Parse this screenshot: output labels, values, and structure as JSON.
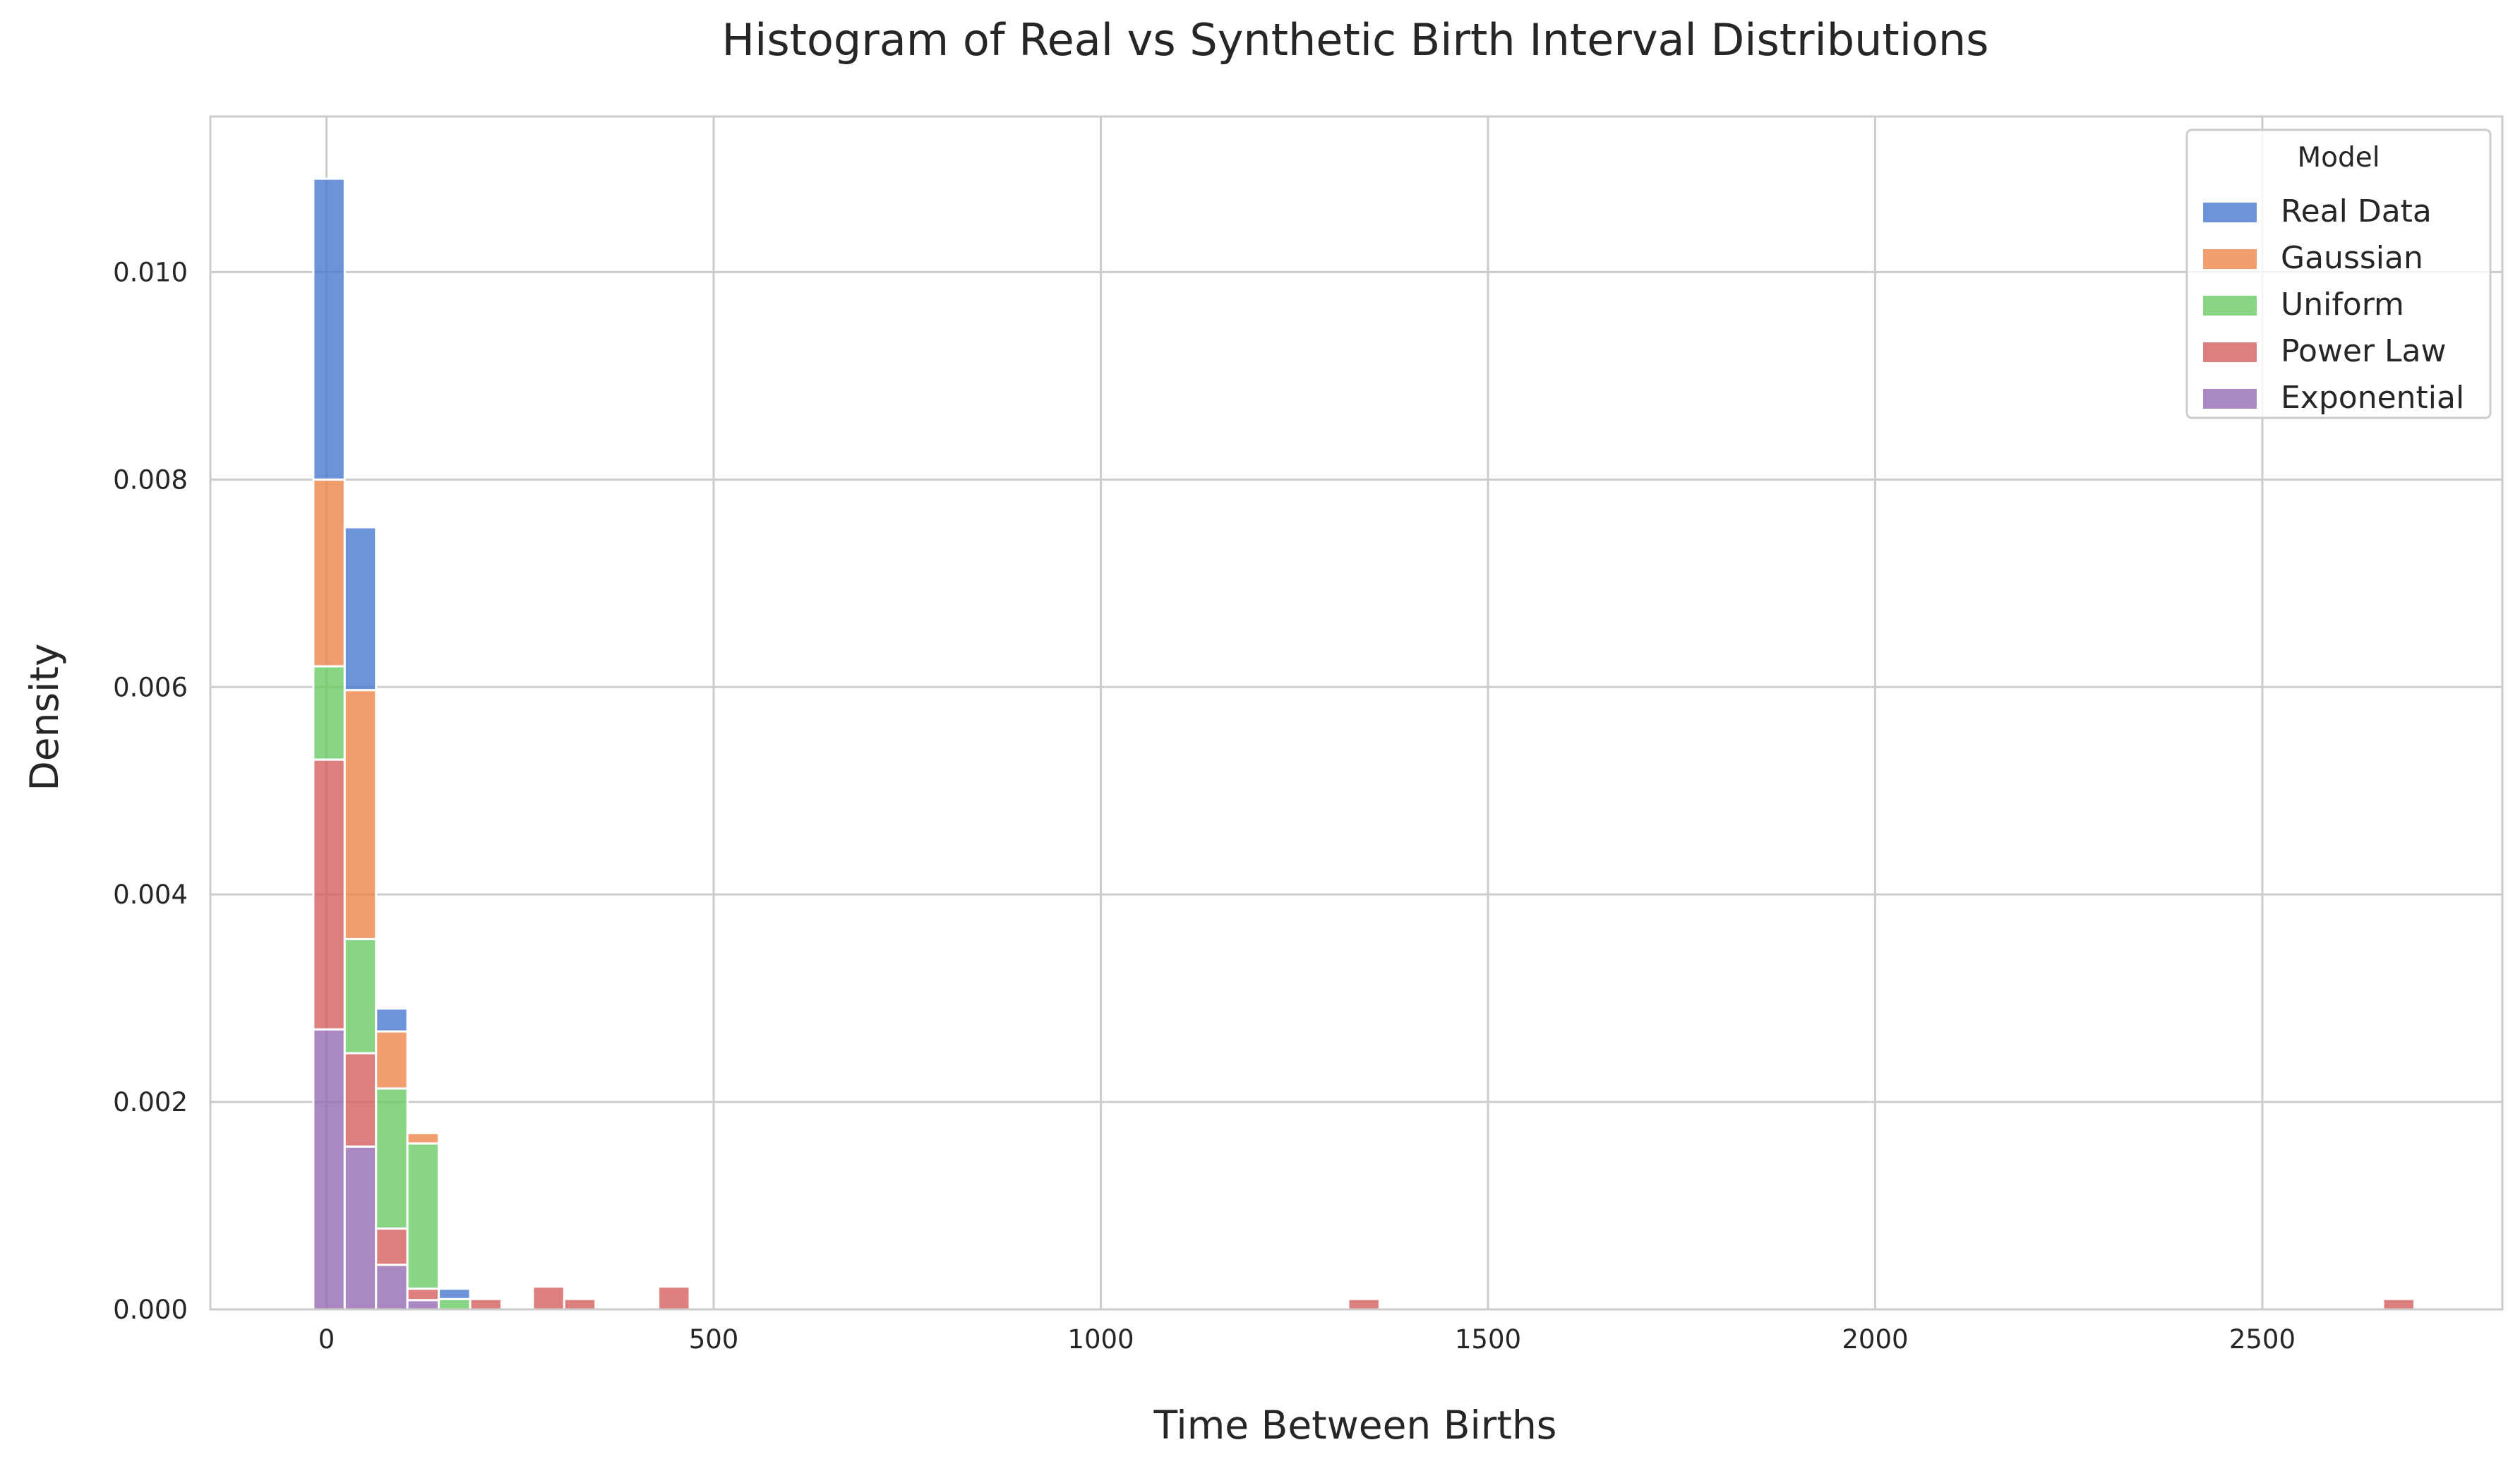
{
  "chart_data": {
    "type": "bar",
    "stacked": true,
    "title": "Histogram of Real vs Synthetic Birth Interval Distributions",
    "xlabel": "Time Between Births",
    "ylabel": "Density",
    "xlim": [
      -150,
      2810
    ],
    "ylim": [
      0,
      0.0115
    ],
    "xticks": [
      0,
      500,
      1000,
      1500,
      2000,
      2500
    ],
    "xtick_labels": [
      "0",
      "500",
      "1000",
      "1500",
      "2000",
      "2500"
    ],
    "yticks": [
      0,
      0.002,
      0.004,
      0.006,
      0.008,
      0.01
    ],
    "ytick_labels": [
      "0.000",
      "0.002",
      "0.004",
      "0.006",
      "0.008",
      "0.010"
    ],
    "grid": true,
    "legend": {
      "title": "Model",
      "placement": "top-right"
    },
    "bin_width": 40.5,
    "x": [
      -17,
      23.5,
      64,
      104.5,
      145,
      185.5,
      226,
      266.5,
      307,
      347.5,
      428.5,
      1319.5,
      2656
    ],
    "series": [
      {
        "name": "Exponential",
        "color": "#956cb4",
        "values": [
          0.0027,
          0.00157,
          0.00043,
          9e-05,
          0,
          0,
          0,
          0,
          0,
          0,
          0,
          0,
          0
        ]
      },
      {
        "name": "Power Law",
        "color": "#d65f5f",
        "values": [
          0.0026,
          0.0009,
          0.00035,
          0.00011,
          0,
          0.0001,
          0,
          0.00022,
          0.0001,
          0,
          0.00022,
          0.0001,
          0.0001
        ]
      },
      {
        "name": "Uniform",
        "color": "#6acc64",
        "values": [
          0.0009,
          0.0011,
          0.00135,
          0.0014,
          0.0001,
          0,
          0,
          0,
          0,
          0,
          0,
          0,
          0
        ]
      },
      {
        "name": "Gaussian",
        "color": "#ee854a",
        "values": [
          0.0018,
          0.0024,
          0.00055,
          0.0001,
          0,
          0,
          0,
          0,
          0,
          0,
          0,
          0,
          0
        ]
      },
      {
        "name": "Real Data",
        "color": "#4878d0",
        "values": [
          0.0029,
          0.00157,
          0.00022,
          0,
          0.0001,
          0,
          0,
          0,
          0,
          0,
          0,
          0,
          0
        ]
      }
    ],
    "legend_order": [
      "Real Data",
      "Gaussian",
      "Uniform",
      "Power Law",
      "Exponential"
    ]
  }
}
